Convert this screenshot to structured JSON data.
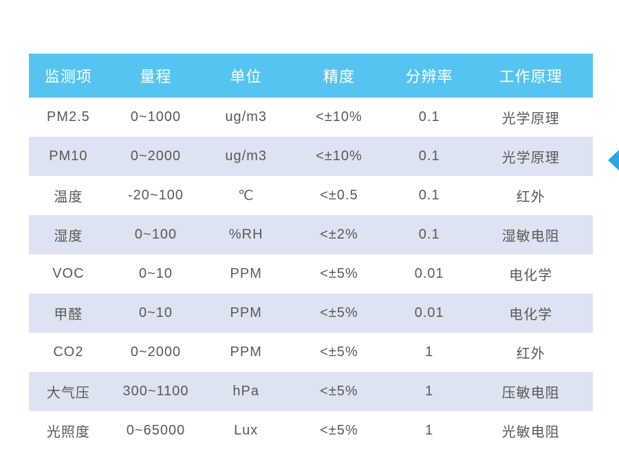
{
  "table": {
    "header_bg": "#55c4f1",
    "header_color": "#ffffff",
    "row_alt_bg": "#dee3f1",
    "row_bg": "#ffffff",
    "text_color": "#595959",
    "col_widths": [
      "14%",
      "17%",
      "15%",
      "18%",
      "14%",
      "22%"
    ],
    "columns": [
      "监测项",
      "量程",
      "单位",
      "精度",
      "分辨率",
      "工作原理"
    ],
    "rows": [
      [
        "PM2.5",
        "0~1000",
        "ug/m3",
        "<±10%",
        "0.1",
        "光学原理"
      ],
      [
        "PM10",
        "0~2000",
        "ug/m3",
        "<±10%",
        "0.1",
        "光学原理"
      ],
      [
        "温度",
        "-20~100",
        "℃",
        "<±0.5",
        "0.1",
        "红外"
      ],
      [
        "湿度",
        "0~100",
        "%RH",
        "<±2%",
        "0.1",
        "湿敏电阻"
      ],
      [
        "VOC",
        "0~10",
        "PPM",
        "<±5%",
        "0.01",
        "电化学"
      ],
      [
        "甲醛",
        "0~10",
        "PPM",
        "<±5%",
        "0.01",
        "电化学"
      ],
      [
        "CO2",
        "0~2000",
        "PPM",
        "<±5%",
        "1",
        "红外"
      ],
      [
        "大气压",
        "300~1100",
        "hPa",
        "<±5%",
        "1",
        "压敏电阻"
      ],
      [
        "光照度",
        "0~65000",
        "Lux",
        "<±5%",
        "1",
        "光敏电阻"
      ]
    ]
  },
  "arrow_color": "#2aa7e0"
}
